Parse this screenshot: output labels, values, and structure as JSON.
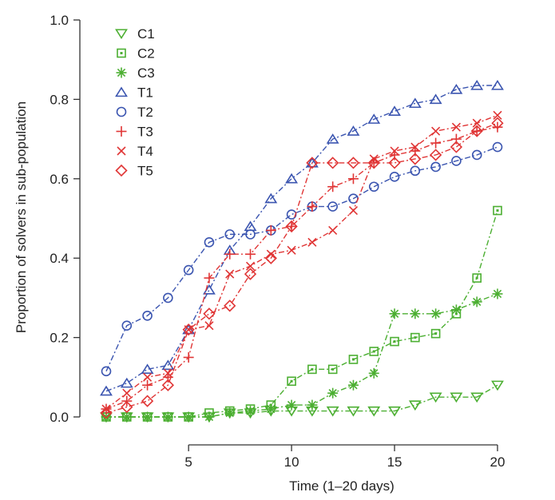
{
  "chart_data": {
    "type": "line",
    "title": "",
    "xlabel": "Time (1–20 days)",
    "ylabel": "Proportion of solvers in sub-population",
    "xlim": [
      1,
      20
    ],
    "ylim": [
      0,
      1.0
    ],
    "xticks": [
      5,
      10,
      15,
      20
    ],
    "yticks": [
      0.0,
      0.2,
      0.4,
      0.6,
      0.8,
      1.0
    ],
    "ytick_labels": [
      "0.0",
      "0.2",
      "0.4",
      "0.6",
      "0.8",
      "1.0"
    ],
    "grid": false,
    "legend_position": "top-left",
    "x": [
      1,
      2,
      3,
      4,
      5,
      6,
      7,
      8,
      9,
      10,
      11,
      12,
      13,
      14,
      15,
      16,
      17,
      18,
      19,
      20
    ],
    "series": [
      {
        "name": "C1",
        "color": "#4caf32",
        "marker": "triangle-down",
        "values": [
          0,
          0,
          0,
          0,
          0,
          0,
          0.01,
          0.01,
          0.015,
          0.015,
          0.015,
          0.015,
          0.015,
          0.015,
          0.015,
          0.03,
          0.05,
          0.05,
          0.05,
          0.08
        ]
      },
      {
        "name": "C2",
        "color": "#4caf32",
        "marker": "square-dot",
        "values": [
          0,
          0,
          0,
          0,
          0,
          0.01,
          0.015,
          0.02,
          0.03,
          0.09,
          0.12,
          0.12,
          0.145,
          0.165,
          0.19,
          0.2,
          0.21,
          0.26,
          0.35,
          0.52
        ]
      },
      {
        "name": "C3",
        "color": "#4caf32",
        "marker": "asterisk",
        "values": [
          0,
          0,
          0,
          0,
          0,
          0,
          0.01,
          0.015,
          0.02,
          0.03,
          0.03,
          0.06,
          0.08,
          0.11,
          0.26,
          0.26,
          0.26,
          0.27,
          0.29,
          0.31
        ]
      },
      {
        "name": "T1",
        "color": "#3b55b0",
        "marker": "triangle-up",
        "values": [
          0.065,
          0.085,
          0.12,
          0.13,
          0.22,
          0.32,
          0.42,
          0.48,
          0.55,
          0.6,
          0.64,
          0.7,
          0.72,
          0.75,
          0.77,
          0.79,
          0.8,
          0.825,
          0.835,
          0.835
        ]
      },
      {
        "name": "T2",
        "color": "#3b55b0",
        "marker": "circle",
        "values": [
          0.115,
          0.23,
          0.255,
          0.3,
          0.37,
          0.44,
          0.46,
          0.46,
          0.47,
          0.51,
          0.53,
          0.53,
          0.55,
          0.58,
          0.605,
          0.62,
          0.63,
          0.645,
          0.66,
          0.68
        ]
      },
      {
        "name": "T3",
        "color": "#e03535",
        "marker": "plus",
        "values": [
          0.02,
          0.04,
          0.08,
          0.1,
          0.15,
          0.35,
          0.41,
          0.41,
          0.47,
          0.48,
          0.53,
          0.58,
          0.6,
          0.64,
          0.66,
          0.67,
          0.69,
          0.7,
          0.72,
          0.73
        ]
      },
      {
        "name": "T4",
        "color": "#e03535",
        "marker": "x",
        "values": [
          0.02,
          0.06,
          0.1,
          0.11,
          0.22,
          0.23,
          0.36,
          0.38,
          0.41,
          0.42,
          0.44,
          0.47,
          0.52,
          0.65,
          0.67,
          0.68,
          0.72,
          0.73,
          0.74,
          0.76
        ]
      },
      {
        "name": "T5",
        "color": "#e03535",
        "marker": "diamond",
        "values": [
          0.01,
          0.025,
          0.04,
          0.08,
          0.22,
          0.26,
          0.28,
          0.36,
          0.4,
          0.48,
          0.64,
          0.64,
          0.64,
          0.64,
          0.64,
          0.65,
          0.66,
          0.68,
          0.72,
          0.74
        ]
      }
    ]
  }
}
